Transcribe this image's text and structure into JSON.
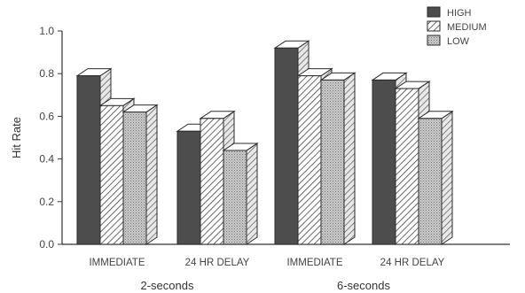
{
  "chart_data": {
    "type": "bar",
    "ylabel": "Hit Rate",
    "ylim": [
      0.0,
      1.0
    ],
    "yticks": [
      "0.0",
      "0.2",
      "0.4",
      "0.6",
      "0.8",
      "1.0"
    ],
    "categories": [
      "IMMEDIATE",
      "24 HR DELAY",
      "IMMEDIATE",
      "24 HR DELAY"
    ],
    "groups": [
      {
        "label": "2-seconds",
        "categories": [
          0,
          1
        ]
      },
      {
        "label": "6-seconds",
        "categories": [
          2,
          3
        ]
      }
    ],
    "series": [
      {
        "name": "HIGH",
        "values": [
          0.79,
          0.53,
          0.92,
          0.77
        ]
      },
      {
        "name": "MEDIUM",
        "values": [
          0.65,
          0.59,
          0.79,
          0.73
        ]
      },
      {
        "name": "LOW",
        "values": [
          0.62,
          0.44,
          0.77,
          0.59
        ]
      }
    ],
    "legend_position": "top-right",
    "style": "3d-bars",
    "colors": {
      "HIGH": "#555555",
      "MEDIUM_hatch": "#555555",
      "LOW": "#bcbcbc",
      "outline": "#2a2a2a"
    }
  }
}
